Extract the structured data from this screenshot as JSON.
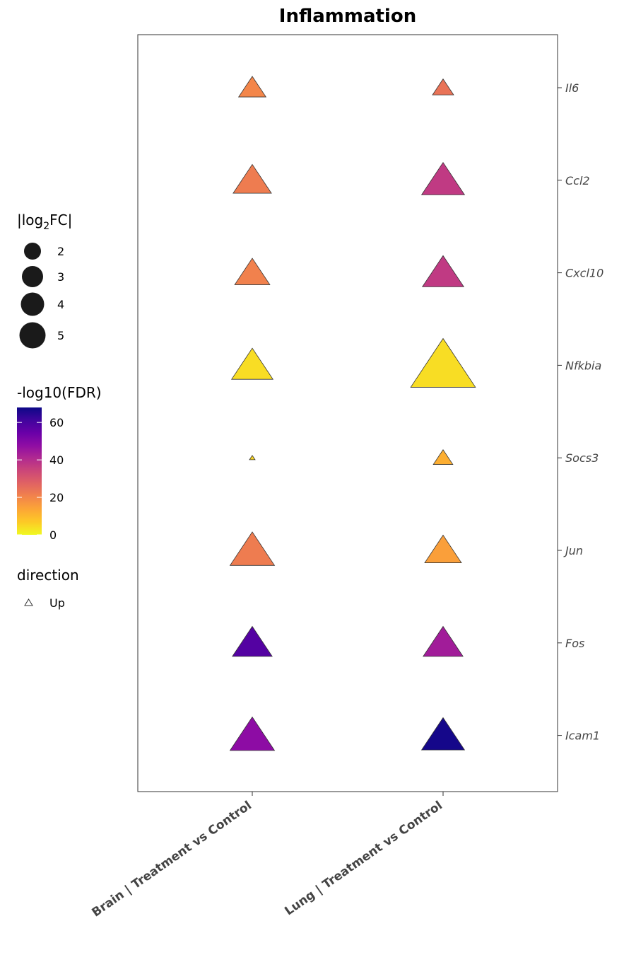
{
  "chart_data": {
    "type": "scatter",
    "title": "Inflammation",
    "categories": [
      "Brain | Treatment vs Control",
      "Lung | Treatment vs Control"
    ],
    "genes": [
      "Il6",
      "Ccl2",
      "Cxcl10",
      "Nfkbia",
      "Socs3",
      "Jun",
      "Fos",
      "Icam1"
    ],
    "points": [
      {
        "category": "Brain | Treatment vs Control",
        "gene": "Il6",
        "abs_log2fc": 2.8,
        "neg_log10_fdr": 20,
        "direction": "Up"
      },
      {
        "category": "Brain | Treatment vs Control",
        "gene": "Ccl2",
        "abs_log2fc": 3.5,
        "neg_log10_fdr": 22,
        "direction": "Up"
      },
      {
        "category": "Brain | Treatment vs Control",
        "gene": "Cxcl10",
        "abs_log2fc": 3.3,
        "neg_log10_fdr": 21,
        "direction": "Up"
      },
      {
        "category": "Brain | Treatment vs Control",
        "gene": "Nfkbia",
        "abs_log2fc": 3.7,
        "neg_log10_fdr": 4,
        "direction": "Up"
      },
      {
        "category": "Brain | Treatment vs Control",
        "gene": "Socs3",
        "abs_log2fc": 1.3,
        "neg_log10_fdr": 5,
        "direction": "Up"
      },
      {
        "category": "Brain | Treatment vs Control",
        "gene": "Jun",
        "abs_log2fc": 3.9,
        "neg_log10_fdr": 22,
        "direction": "Up"
      },
      {
        "category": "Brain | Treatment vs Control",
        "gene": "Fos",
        "abs_log2fc": 3.6,
        "neg_log10_fdr": 58,
        "direction": "Up"
      },
      {
        "category": "Brain | Treatment vs Control",
        "gene": "Icam1",
        "abs_log2fc": 3.9,
        "neg_log10_fdr": 48,
        "direction": "Up"
      },
      {
        "category": "Lung | Treatment vs Control",
        "gene": "Il6",
        "abs_log2fc": 2.4,
        "neg_log10_fdr": 24,
        "direction": "Up"
      },
      {
        "category": "Lung | Treatment vs Control",
        "gene": "Ccl2",
        "abs_log2fc": 3.8,
        "neg_log10_fdr": 37,
        "direction": "Up"
      },
      {
        "category": "Lung | Treatment vs Control",
        "gene": "Cxcl10",
        "abs_log2fc": 3.7,
        "neg_log10_fdr": 37,
        "direction": "Up"
      },
      {
        "category": "Lung | Treatment vs Control",
        "gene": "Nfkbia",
        "abs_log2fc": 5.2,
        "neg_log10_fdr": 4,
        "direction": "Up"
      },
      {
        "category": "Lung | Treatment vs Control",
        "gene": "Socs3",
        "abs_log2fc": 2.3,
        "neg_log10_fdr": 12,
        "direction": "Up"
      },
      {
        "category": "Lung | Treatment vs Control",
        "gene": "Jun",
        "abs_log2fc": 3.4,
        "neg_log10_fdr": 15,
        "direction": "Up"
      },
      {
        "category": "Lung | Treatment vs Control",
        "gene": "Fos",
        "abs_log2fc": 3.6,
        "neg_log10_fdr": 44,
        "direction": "Up"
      },
      {
        "category": "Lung | Treatment vs Control",
        "gene": "Icam1",
        "abs_log2fc": 3.8,
        "neg_log10_fdr": 67,
        "direction": "Up"
      }
    ],
    "size_legend": {
      "title": "|log2FC|",
      "breaks": [
        2,
        3,
        4,
        5
      ]
    },
    "color_legend": {
      "title": "-log10(FDR)",
      "breaks": [
        0,
        20,
        40,
        60
      ],
      "range": [
        0,
        68
      ],
      "palette": "plasma"
    },
    "shape_legend": {
      "title": "direction",
      "entries": [
        "Up"
      ]
    },
    "legend_position": "left",
    "grid": false
  }
}
